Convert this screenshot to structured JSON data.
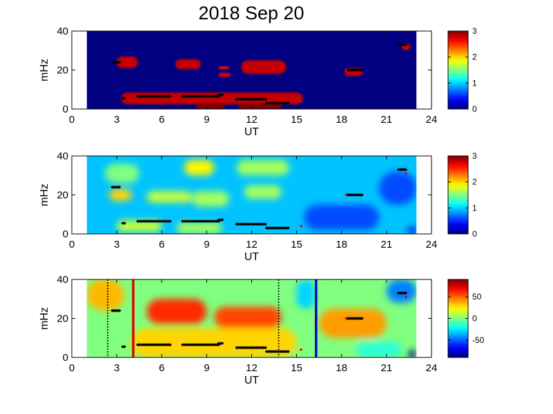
{
  "chart_data": {
    "type": "heatmap",
    "title": "2018 Sep 20",
    "panels": [
      {
        "id": "power",
        "xlabel": "UT",
        "ylabel": "mHz",
        "xlim": [
          0,
          24
        ],
        "ylim": [
          0,
          40
        ],
        "xticks": [
          "0",
          "3",
          "6",
          "9",
          "12",
          "15",
          "18",
          "21",
          "24"
        ],
        "yticks": [
          "0",
          "20",
          "40"
        ],
        "data_range_ut": [
          1,
          23
        ],
        "colorbar": {
          "min": 0,
          "max": 3,
          "ticks": [
            "0",
            "1",
            "2",
            "3"
          ]
        },
        "background_value": 0,
        "regions": [
          {
            "ut": [
              3.0,
              4.4
            ],
            "mhz": [
              21.0,
              27.0
            ],
            "value": 2.8
          },
          {
            "ut": [
              6.9,
              8.6
            ],
            "mhz": [
              20.5,
              25.5
            ],
            "value": 2.8
          },
          {
            "ut": [
              9.8,
              10.5
            ],
            "mhz": [
              20.5,
              21.8
            ],
            "value": 2.6
          },
          {
            "ut": [
              9.8,
              10.6
            ],
            "mhz": [
              16.5,
              18.5
            ],
            "value": 2.7
          },
          {
            "ut": [
              11.3,
              14.3
            ],
            "mhz": [
              18.0,
              25.0
            ],
            "value": 2.8
          },
          {
            "ut": [
              18.2,
              19.4
            ],
            "mhz": [
              17.0,
              21.0
            ],
            "value": 2.8
          },
          {
            "ut": [
              22.0,
              22.6
            ],
            "mhz": [
              30.5,
              33.5
            ],
            "value": 2.8
          },
          {
            "ut": [
              3.3,
              15.4
            ],
            "mhz": [
              2.5,
              8.5
            ],
            "value": 2.8
          },
          {
            "ut": [
              8.3,
              10.2
            ],
            "mhz": [
              0,
              3.0
            ],
            "value": 3.0
          },
          {
            "ut": [
              11.1,
              14.0
            ],
            "mhz": [
              0,
              3.0
            ],
            "value": 3.0
          }
        ]
      },
      {
        "id": "coherence",
        "xlabel": "UT",
        "ylabel": "mHz",
        "xlim": [
          0,
          24
        ],
        "ylim": [
          0,
          40
        ],
        "xticks": [
          "0",
          "3",
          "6",
          "9",
          "12",
          "15",
          "18",
          "21",
          "24"
        ],
        "yticks": [
          "0",
          "20",
          "40"
        ],
        "data_range_ut": [
          1,
          23
        ],
        "colorbar": {
          "min": 0,
          "max": 3,
          "ticks": [
            "0",
            "1",
            "2",
            "3"
          ]
        },
        "background_value": 0.95,
        "regions": [
          {
            "ut": [
              2.2,
              4.5
            ],
            "mhz": [
              26,
              36
            ],
            "value": 1.5
          },
          {
            "ut": [
              5.0,
              8.0
            ],
            "mhz": [
              16,
              22
            ],
            "value": 1.7
          },
          {
            "ut": [
              7.5,
              9.5
            ],
            "mhz": [
              30,
              38
            ],
            "value": 1.9
          },
          {
            "ut": [
              2.5,
              4.0
            ],
            "mhz": [
              17,
              23
            ],
            "value": 2.0
          },
          {
            "ut": [
              11.0,
              14.5
            ],
            "mhz": [
              30,
              38
            ],
            "value": 1.6
          },
          {
            "ut": [
              8.0,
              10.5
            ],
            "mhz": [
              14,
              22
            ],
            "value": 1.6
          },
          {
            "ut": [
              11.5,
              14.0
            ],
            "mhz": [
              18,
              25
            ],
            "value": 1.6
          },
          {
            "ut": [
              3.0,
              6.0
            ],
            "mhz": [
              1,
              7
            ],
            "value": 1.7
          },
          {
            "ut": [
              7.0,
              10.0
            ],
            "mhz": [
              0,
              6
            ],
            "value": 1.6
          },
          {
            "ut": [
              15.5,
              20.5
            ],
            "mhz": [
              2,
              15
            ],
            "value": 0.6
          },
          {
            "ut": [
              20.5,
              23.0
            ],
            "mhz": [
              15,
              32
            ],
            "value": 0.6
          },
          {
            "ut": [
              22.4,
              23.0
            ],
            "mhz": [
              0,
              3.5
            ],
            "value": 0.3
          }
        ]
      },
      {
        "id": "phase",
        "xlabel": "UT",
        "ylabel": "mHz",
        "xlim": [
          0,
          24
        ],
        "ylim": [
          0,
          40
        ],
        "xticks": [
          "0",
          "3",
          "6",
          "9",
          "12",
          "15",
          "18",
          "21",
          "24"
        ],
        "yticks": [
          "0",
          "20",
          "40"
        ],
        "data_range_ut": [
          1,
          23
        ],
        "colorbar": {
          "min": -90,
          "max": 90,
          "ticks": [
            "50",
            "0",
            "-50"
          ]
        },
        "background_value": 0,
        "regions": [
          {
            "ut": [
              5.0,
              9.0
            ],
            "mhz": [
              17,
              30
            ],
            "value": 60
          },
          {
            "ut": [
              9.5,
              14.0
            ],
            "mhz": [
              15,
              26
            ],
            "value": 55
          },
          {
            "ut": [
              4.0,
              15.0
            ],
            "mhz": [
              0,
              15
            ],
            "value": 30
          },
          {
            "ut": [
              1.0,
              3.5
            ],
            "mhz": [
              24,
              40
            ],
            "value": 35
          },
          {
            "ut": [
              16.5,
              21.0
            ],
            "mhz": [
              10,
              25
            ],
            "value": 40
          },
          {
            "ut": [
              15.0,
              16.2
            ],
            "mhz": [
              25,
              40
            ],
            "value": -30
          },
          {
            "ut": [
              21.0,
              23.0
            ],
            "mhz": [
              28,
              40
            ],
            "value": -45
          },
          {
            "ut": [
              19.0,
              22.0
            ],
            "mhz": [
              0,
              8
            ],
            "value": -15
          },
          {
            "ut": [
              22.4,
              23.0
            ],
            "mhz": [
              0,
              3.5
            ],
            "value": -90
          }
        ],
        "vertical_lines": [
          {
            "ut": 2.4,
            "style": "dotted",
            "color": "#000000"
          },
          {
            "ut": 4.1,
            "style": "solid",
            "color": "#e60000"
          },
          {
            "ut": 13.8,
            "style": "dotted",
            "color": "#000000"
          },
          {
            "ut": 16.3,
            "style": "solid",
            "color": "#0000c8"
          }
        ]
      }
    ],
    "marker_tracks": [
      {
        "ut": [
          2.7,
          3.2
        ],
        "mhz": 24
      },
      {
        "ut": [
          3.4,
          3.6
        ],
        "mhz": 5.5
      },
      {
        "ut": [
          4.4,
          6.6
        ],
        "mhz": 6.5
      },
      {
        "ut": [
          7.4,
          9.8
        ],
        "mhz": 6.5
      },
      {
        "ut": [
          9.8,
          10.1
        ],
        "mhz": 7.2
      },
      {
        "ut": [
          11.0,
          13.0
        ],
        "mhz": 5.0
      },
      {
        "ut": [
          13.0,
          14.5
        ],
        "mhz": 3.0
      },
      {
        "ut": [
          18.4,
          19.4
        ],
        "mhz": 20
      },
      {
        "ut": [
          21.8,
          22.3
        ],
        "mhz": 33
      }
    ],
    "red_markers": [
      {
        "ut": 15.3,
        "mhz": 4
      },
      {
        "ut": 18.3,
        "mhz": 20
      },
      {
        "ut": 22.3,
        "mhz": 31
      }
    ]
  }
}
